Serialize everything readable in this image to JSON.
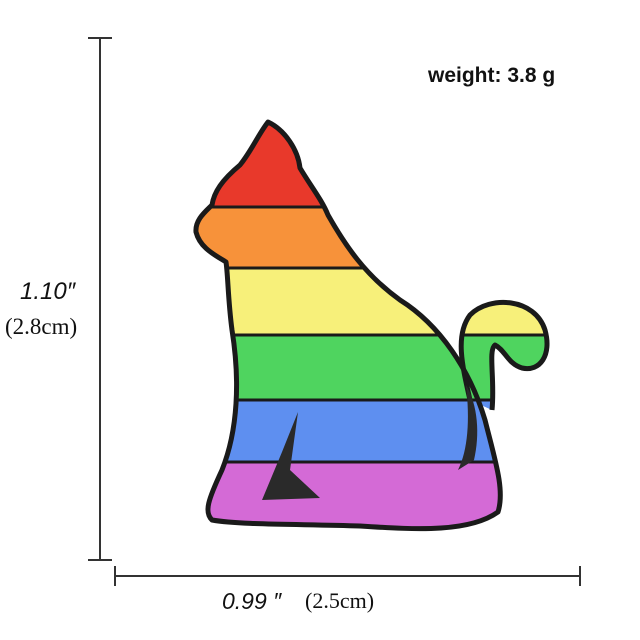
{
  "weight_label": "weight: 3.8 g",
  "height": {
    "inches": "1.10″",
    "cm": "(2.8cm)"
  },
  "width": {
    "inches": "0.99 ″",
    "cm": "(2.5cm)"
  },
  "stripe_colors": [
    "#e8392b",
    "#f7923a",
    "#f7f07a",
    "#4fd45f",
    "#5e8ff0",
    "#d46ad6"
  ],
  "outline_color": "#1a1a1a"
}
